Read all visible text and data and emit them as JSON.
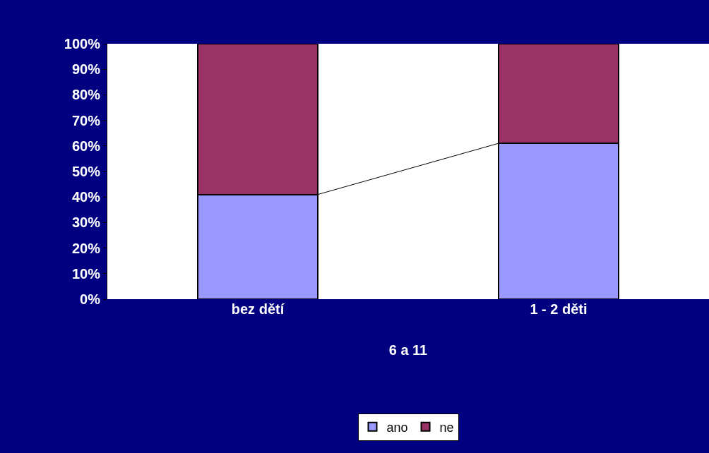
{
  "chart_data": {
    "type": "bar",
    "stacked": true,
    "categories": [
      "bez dětí",
      "1 - 2 děti"
    ],
    "xlabel": "6 a 11",
    "series": [
      {
        "name": "ano",
        "color": "#9999ff",
        "values": [
          41,
          61
        ]
      },
      {
        "name": "ne",
        "color": "#993366",
        "values": [
          59,
          39
        ]
      }
    ],
    "ylim": [
      0,
      100
    ],
    "yticks": [
      {
        "value": 0,
        "label": "0%"
      },
      {
        "value": 10,
        "label": "10%"
      },
      {
        "value": 20,
        "label": "20%"
      },
      {
        "value": 30,
        "label": "30%"
      },
      {
        "value": 40,
        "label": "40%"
      },
      {
        "value": 50,
        "label": "50%"
      },
      {
        "value": 60,
        "label": "60%"
      },
      {
        "value": 70,
        "label": "70%"
      },
      {
        "value": 80,
        "label": "80%"
      },
      {
        "value": 90,
        "label": "90%"
      },
      {
        "value": 100,
        "label": "100%"
      }
    ],
    "legend": "bottom"
  }
}
